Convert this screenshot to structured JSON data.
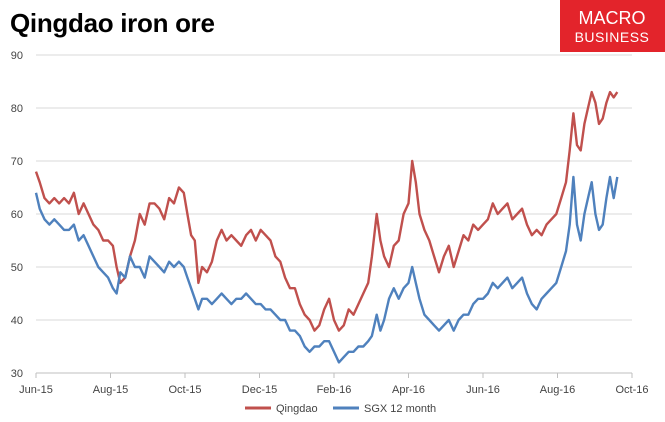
{
  "title": "Qingdao iron ore",
  "logo": {
    "line1": "MACRO",
    "line2": "BUSINESS",
    "bg": "#e3242b"
  },
  "chart_data": {
    "type": "line",
    "title": "Qingdao iron ore",
    "xlabel": "",
    "ylabel": "",
    "ylim": [
      30,
      90
    ],
    "yticks": [
      30,
      40,
      50,
      60,
      70,
      80,
      90
    ],
    "xlim": [
      "2015-06-01",
      "2016-10-01"
    ],
    "xticks": [
      "Jun-15",
      "Aug-15",
      "Oct-15",
      "Dec-15",
      "Feb-16",
      "Apr-16",
      "Jun-16",
      "Aug-16",
      "Oct-16"
    ],
    "grid": true,
    "legend": "bottom",
    "series": [
      {
        "name": "Qingdao",
        "color": "#c0504d",
        "points": [
          [
            "2015-06-01",
            68
          ],
          [
            "2015-06-04",
            66
          ],
          [
            "2015-06-08",
            63
          ],
          [
            "2015-06-12",
            62
          ],
          [
            "2015-06-16",
            63
          ],
          [
            "2015-06-20",
            62
          ],
          [
            "2015-06-24",
            63
          ],
          [
            "2015-06-28",
            62
          ],
          [
            "2015-07-02",
            64
          ],
          [
            "2015-07-06",
            60
          ],
          [
            "2015-07-10",
            62
          ],
          [
            "2015-07-14",
            60
          ],
          [
            "2015-07-18",
            58
          ],
          [
            "2015-07-22",
            57
          ],
          [
            "2015-07-26",
            55
          ],
          [
            "2015-07-30",
            55
          ],
          [
            "2015-08-03",
            54
          ],
          [
            "2015-08-06",
            50
          ],
          [
            "2015-08-09",
            47
          ],
          [
            "2015-08-13",
            48
          ],
          [
            "2015-08-17",
            52
          ],
          [
            "2015-08-21",
            55
          ],
          [
            "2015-08-25",
            60
          ],
          [
            "2015-08-29",
            58
          ],
          [
            "2015-09-02",
            62
          ],
          [
            "2015-09-06",
            62
          ],
          [
            "2015-09-10",
            61
          ],
          [
            "2015-09-14",
            59
          ],
          [
            "2015-09-18",
            63
          ],
          [
            "2015-09-22",
            62
          ],
          [
            "2015-09-26",
            65
          ],
          [
            "2015-09-30",
            64
          ],
          [
            "2015-10-03",
            60
          ],
          [
            "2015-10-06",
            56
          ],
          [
            "2015-10-09",
            55
          ],
          [
            "2015-10-12",
            47
          ],
          [
            "2015-10-15",
            50
          ],
          [
            "2015-10-19",
            49
          ],
          [
            "2015-10-23",
            51
          ],
          [
            "2015-10-27",
            55
          ],
          [
            "2015-10-31",
            57
          ],
          [
            "2015-11-04",
            55
          ],
          [
            "2015-11-08",
            56
          ],
          [
            "2015-11-12",
            55
          ],
          [
            "2015-11-16",
            54
          ],
          [
            "2015-11-20",
            56
          ],
          [
            "2015-11-24",
            57
          ],
          [
            "2015-11-28",
            55
          ],
          [
            "2015-12-02",
            57
          ],
          [
            "2015-12-06",
            56
          ],
          [
            "2015-12-10",
            55
          ],
          [
            "2015-12-14",
            52
          ],
          [
            "2015-12-18",
            51
          ],
          [
            "2015-12-22",
            48
          ],
          [
            "2015-12-26",
            46
          ],
          [
            "2015-12-30",
            46
          ],
          [
            "2016-01-03",
            43
          ],
          [
            "2016-01-07",
            41
          ],
          [
            "2016-01-11",
            40
          ],
          [
            "2016-01-15",
            38
          ],
          [
            "2016-01-19",
            39
          ],
          [
            "2016-01-23",
            42
          ],
          [
            "2016-01-27",
            44
          ],
          [
            "2016-01-31",
            40
          ],
          [
            "2016-02-04",
            38
          ],
          [
            "2016-02-08",
            39
          ],
          [
            "2016-02-12",
            42
          ],
          [
            "2016-02-16",
            41
          ],
          [
            "2016-02-20",
            43
          ],
          [
            "2016-02-24",
            45
          ],
          [
            "2016-02-28",
            47
          ],
          [
            "2016-03-02",
            52
          ],
          [
            "2016-03-06",
            60
          ],
          [
            "2016-03-09",
            55
          ],
          [
            "2016-03-12",
            52
          ],
          [
            "2016-03-16",
            50
          ],
          [
            "2016-03-20",
            54
          ],
          [
            "2016-03-24",
            55
          ],
          [
            "2016-03-28",
            60
          ],
          [
            "2016-04-01",
            62
          ],
          [
            "2016-04-04",
            70
          ],
          [
            "2016-04-07",
            66
          ],
          [
            "2016-04-10",
            60
          ],
          [
            "2016-04-14",
            57
          ],
          [
            "2016-04-18",
            55
          ],
          [
            "2016-04-22",
            52
          ],
          [
            "2016-04-26",
            49
          ],
          [
            "2016-04-30",
            52
          ],
          [
            "2016-05-04",
            54
          ],
          [
            "2016-05-08",
            50
          ],
          [
            "2016-05-12",
            53
          ],
          [
            "2016-05-16",
            56
          ],
          [
            "2016-05-20",
            55
          ],
          [
            "2016-05-24",
            58
          ],
          [
            "2016-05-28",
            57
          ],
          [
            "2016-06-01",
            58
          ],
          [
            "2016-06-05",
            59
          ],
          [
            "2016-06-09",
            62
          ],
          [
            "2016-06-13",
            60
          ],
          [
            "2016-06-17",
            61
          ],
          [
            "2016-06-21",
            62
          ],
          [
            "2016-06-25",
            59
          ],
          [
            "2016-06-29",
            60
          ],
          [
            "2016-07-03",
            61
          ],
          [
            "2016-07-07",
            58
          ],
          [
            "2016-07-11",
            56
          ],
          [
            "2016-07-15",
            57
          ],
          [
            "2016-07-19",
            56
          ],
          [
            "2016-07-23",
            58
          ],
          [
            "2016-07-27",
            59
          ],
          [
            "2016-07-31",
            60
          ],
          [
            "2016-08-04",
            63
          ],
          [
            "2016-08-08",
            66
          ],
          [
            "2016-08-11",
            72
          ],
          [
            "2016-08-14",
            79
          ],
          [
            "2016-08-17",
            73
          ],
          [
            "2016-08-20",
            72
          ],
          [
            "2016-08-23",
            77
          ],
          [
            "2016-08-26",
            80
          ],
          [
            "2016-08-29",
            83
          ],
          [
            "2016-09-01",
            81
          ],
          [
            "2016-09-04",
            77
          ],
          [
            "2016-09-07",
            78
          ],
          [
            "2016-09-10",
            81
          ],
          [
            "2016-09-13",
            83
          ],
          [
            "2016-09-16",
            82
          ],
          [
            "2016-09-19",
            83
          ]
        ]
      },
      {
        "name": "SGX 12 month",
        "color": "#4f81bd",
        "points": [
          [
            "2015-06-01",
            64
          ],
          [
            "2015-06-04",
            61
          ],
          [
            "2015-06-08",
            59
          ],
          [
            "2015-06-12",
            58
          ],
          [
            "2015-06-16",
            59
          ],
          [
            "2015-06-20",
            58
          ],
          [
            "2015-06-24",
            57
          ],
          [
            "2015-06-28",
            57
          ],
          [
            "2015-07-02",
            58
          ],
          [
            "2015-07-06",
            55
          ],
          [
            "2015-07-10",
            56
          ],
          [
            "2015-07-14",
            54
          ],
          [
            "2015-07-18",
            52
          ],
          [
            "2015-07-22",
            50
          ],
          [
            "2015-07-26",
            49
          ],
          [
            "2015-07-30",
            48
          ],
          [
            "2015-08-03",
            46
          ],
          [
            "2015-08-06",
            45
          ],
          [
            "2015-08-09",
            49
          ],
          [
            "2015-08-13",
            48
          ],
          [
            "2015-08-17",
            52
          ],
          [
            "2015-08-21",
            50
          ],
          [
            "2015-08-25",
            50
          ],
          [
            "2015-08-29",
            48
          ],
          [
            "2015-09-02",
            52
          ],
          [
            "2015-09-06",
            51
          ],
          [
            "2015-09-10",
            50
          ],
          [
            "2015-09-14",
            49
          ],
          [
            "2015-09-18",
            51
          ],
          [
            "2015-09-22",
            50
          ],
          [
            "2015-09-26",
            51
          ],
          [
            "2015-09-30",
            50
          ],
          [
            "2015-10-03",
            48
          ],
          [
            "2015-10-06",
            46
          ],
          [
            "2015-10-09",
            44
          ],
          [
            "2015-10-12",
            42
          ],
          [
            "2015-10-15",
            44
          ],
          [
            "2015-10-19",
            44
          ],
          [
            "2015-10-23",
            43
          ],
          [
            "2015-10-27",
            44
          ],
          [
            "2015-10-31",
            45
          ],
          [
            "2015-11-04",
            44
          ],
          [
            "2015-11-08",
            43
          ],
          [
            "2015-11-12",
            44
          ],
          [
            "2015-11-16",
            44
          ],
          [
            "2015-11-20",
            45
          ],
          [
            "2015-11-24",
            44
          ],
          [
            "2015-11-28",
            43
          ],
          [
            "2015-12-02",
            43
          ],
          [
            "2015-12-06",
            42
          ],
          [
            "2015-12-10",
            42
          ],
          [
            "2015-12-14",
            41
          ],
          [
            "2015-12-18",
            40
          ],
          [
            "2015-12-22",
            40
          ],
          [
            "2015-12-26",
            38
          ],
          [
            "2015-12-30",
            38
          ],
          [
            "2016-01-03",
            37
          ],
          [
            "2016-01-07",
            35
          ],
          [
            "2016-01-11",
            34
          ],
          [
            "2016-01-15",
            35
          ],
          [
            "2016-01-19",
            35
          ],
          [
            "2016-01-23",
            36
          ],
          [
            "2016-01-27",
            36
          ],
          [
            "2016-01-31",
            34
          ],
          [
            "2016-02-04",
            32
          ],
          [
            "2016-02-08",
            33
          ],
          [
            "2016-02-12",
            34
          ],
          [
            "2016-02-16",
            34
          ],
          [
            "2016-02-20",
            35
          ],
          [
            "2016-02-24",
            35
          ],
          [
            "2016-02-28",
            36
          ],
          [
            "2016-03-02",
            37
          ],
          [
            "2016-03-06",
            41
          ],
          [
            "2016-03-09",
            38
          ],
          [
            "2016-03-12",
            40
          ],
          [
            "2016-03-16",
            44
          ],
          [
            "2016-03-20",
            46
          ],
          [
            "2016-03-24",
            44
          ],
          [
            "2016-03-28",
            46
          ],
          [
            "2016-04-01",
            47
          ],
          [
            "2016-04-04",
            50
          ],
          [
            "2016-04-07",
            47
          ],
          [
            "2016-04-10",
            44
          ],
          [
            "2016-04-14",
            41
          ],
          [
            "2016-04-18",
            40
          ],
          [
            "2016-04-22",
            39
          ],
          [
            "2016-04-26",
            38
          ],
          [
            "2016-04-30",
            39
          ],
          [
            "2016-05-04",
            40
          ],
          [
            "2016-05-08",
            38
          ],
          [
            "2016-05-12",
            40
          ],
          [
            "2016-05-16",
            41
          ],
          [
            "2016-05-20",
            41
          ],
          [
            "2016-05-24",
            43
          ],
          [
            "2016-05-28",
            44
          ],
          [
            "2016-06-01",
            44
          ],
          [
            "2016-06-05",
            45
          ],
          [
            "2016-06-09",
            47
          ],
          [
            "2016-06-13",
            46
          ],
          [
            "2016-06-17",
            47
          ],
          [
            "2016-06-21",
            48
          ],
          [
            "2016-06-25",
            46
          ],
          [
            "2016-06-29",
            47
          ],
          [
            "2016-07-03",
            48
          ],
          [
            "2016-07-07",
            45
          ],
          [
            "2016-07-11",
            43
          ],
          [
            "2016-07-15",
            42
          ],
          [
            "2016-07-19",
            44
          ],
          [
            "2016-07-23",
            45
          ],
          [
            "2016-07-27",
            46
          ],
          [
            "2016-07-31",
            47
          ],
          [
            "2016-08-04",
            50
          ],
          [
            "2016-08-08",
            53
          ],
          [
            "2016-08-11",
            58
          ],
          [
            "2016-08-14",
            67
          ],
          [
            "2016-08-17",
            58
          ],
          [
            "2016-08-20",
            55
          ],
          [
            "2016-08-23",
            60
          ],
          [
            "2016-08-26",
            63
          ],
          [
            "2016-08-29",
            66
          ],
          [
            "2016-09-01",
            60
          ],
          [
            "2016-09-04",
            57
          ],
          [
            "2016-09-07",
            58
          ],
          [
            "2016-09-10",
            63
          ],
          [
            "2016-09-13",
            67
          ],
          [
            "2016-09-16",
            63
          ],
          [
            "2016-09-19",
            67
          ]
        ]
      }
    ]
  }
}
